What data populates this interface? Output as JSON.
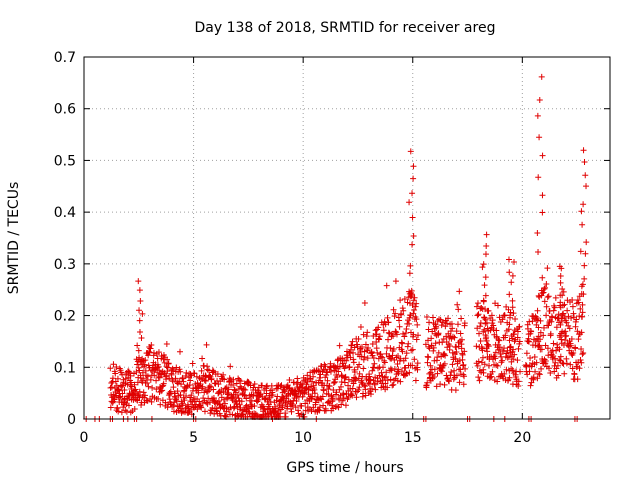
{
  "chart_data": {
    "type": "scatter",
    "title": "Day 138 of 2018, SRMTID for receiver areg",
    "xlabel": "GPS time / hours",
    "ylabel": "SRMTID / TECUs",
    "xlim": [
      0,
      24
    ],
    "ylim": [
      0,
      0.7
    ],
    "xticks": [
      "0",
      "5",
      "10",
      "15",
      "20"
    ],
    "xtick_values": [
      0,
      5,
      10,
      15,
      20
    ],
    "yticks": [
      "0",
      "0.1",
      "0.2",
      "0.3",
      "0.4",
      "0.5",
      "0.6",
      "0.7"
    ],
    "ytick_values": [
      0,
      0.1,
      0.2,
      0.3,
      0.4,
      0.5,
      0.6,
      0.7
    ],
    "grid": true,
    "marker": "+",
    "color": "#e00000",
    "zero_points_x": [
      0.1,
      0.5,
      0.7,
      1.2,
      1.3,
      1.8,
      2.0,
      2.3,
      2.4,
      3.1,
      5.0,
      5.1,
      6.9,
      8.6,
      10.6,
      15.5,
      15.6,
      17.5,
      17.6,
      18.7,
      19.2,
      20.3,
      20.4,
      22.4,
      22.5
    ],
    "curve": [
      [
        1.2,
        0.06
      ],
      [
        1.6,
        0.06
      ],
      [
        2.0,
        0.05
      ],
      [
        2.3,
        0.065
      ],
      [
        2.7,
        0.08
      ],
      [
        3.0,
        0.09
      ],
      [
        3.5,
        0.08
      ],
      [
        4.0,
        0.06
      ],
      [
        4.5,
        0.05
      ],
      [
        5.0,
        0.05
      ],
      [
        5.5,
        0.06
      ],
      [
        6.0,
        0.05
      ],
      [
        6.5,
        0.04
      ],
      [
        7.0,
        0.04
      ],
      [
        7.5,
        0.035
      ],
      [
        8.0,
        0.03
      ],
      [
        8.5,
        0.035
      ],
      [
        9.0,
        0.03
      ],
      [
        9.5,
        0.035
      ],
      [
        10.0,
        0.04
      ],
      [
        10.5,
        0.055
      ],
      [
        11.0,
        0.06
      ],
      [
        11.5,
        0.065
      ],
      [
        12.0,
        0.08
      ],
      [
        12.5,
        0.1
      ],
      [
        13.0,
        0.11
      ],
      [
        13.5,
        0.12
      ],
      [
        14.0,
        0.13
      ],
      [
        14.5,
        0.15
      ],
      [
        15.0,
        0.17
      ],
      [
        15.3,
        0.13
      ],
      [
        15.7,
        0.13
      ],
      [
        16.0,
        0.13
      ],
      [
        16.5,
        0.13
      ],
      [
        17.0,
        0.12
      ],
      [
        17.4,
        0.14
      ],
      [
        18.0,
        0.15
      ],
      [
        18.5,
        0.15
      ],
      [
        19.0,
        0.15
      ],
      [
        19.5,
        0.14
      ],
      [
        20.0,
        0.12
      ],
      [
        20.5,
        0.14
      ],
      [
        21.0,
        0.18
      ],
      [
        21.5,
        0.16
      ],
      [
        22.0,
        0.16
      ],
      [
        22.5,
        0.15
      ],
      [
        22.8,
        0.2
      ]
    ],
    "spikes": [
      {
        "x": 2.55,
        "peak": 0.26
      },
      {
        "x": 14.95,
        "peak": 0.52
      },
      {
        "x": 18.3,
        "peak": 0.35
      },
      {
        "x": 19.5,
        "peak": 0.31
      },
      {
        "x": 20.8,
        "peak": 0.66
      },
      {
        "x": 21.8,
        "peak": 0.3
      },
      {
        "x": 22.8,
        "peak": 0.52
      }
    ]
  }
}
